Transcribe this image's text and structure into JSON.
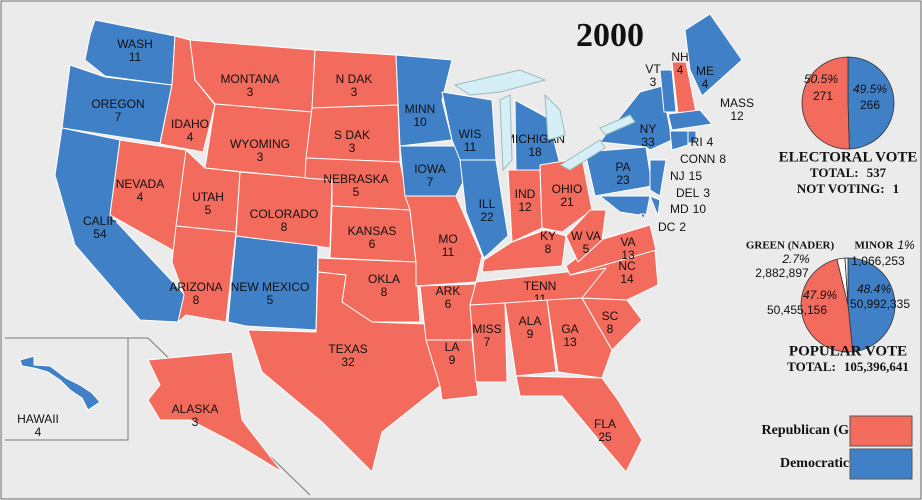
{
  "title": "2000",
  "legend": [
    {
      "label": "Republican (G. W. Bush)",
      "color": "#f26b5d"
    },
    {
      "label": "Democratic (Gore)",
      "color": "#3f80c6"
    }
  ],
  "states": [
    {
      "label": "WASH",
      "votes": 11,
      "color": "#3f80c6"
    },
    {
      "label": "OREGON",
      "votes": 7,
      "color": "#3f80c6"
    },
    {
      "label": "CALIF",
      "votes": 54,
      "color": "#3f80c6"
    },
    {
      "label": "NEVADA",
      "votes": 4,
      "color": "#f26b5d"
    },
    {
      "label": "IDAHO",
      "votes": 4,
      "color": "#f26b5d"
    },
    {
      "label": "MONTANA",
      "votes": 3,
      "color": "#f26b5d"
    },
    {
      "label": "WYOMING",
      "votes": 3,
      "color": "#f26b5d"
    },
    {
      "label": "UTAH",
      "votes": 5,
      "color": "#f26b5d"
    },
    {
      "label": "ARIZONA",
      "votes": 8,
      "color": "#f26b5d"
    },
    {
      "label": "COLORADO",
      "votes": 8,
      "color": "#f26b5d"
    },
    {
      "label": "NEW MEXICO",
      "votes": 5,
      "color": "#3f80c6"
    },
    {
      "label": "N DAK",
      "votes": 3,
      "color": "#f26b5d"
    },
    {
      "label": "S DAK",
      "votes": 3,
      "color": "#f26b5d"
    },
    {
      "label": "NEBRASKA",
      "votes": 5,
      "color": "#f26b5d"
    },
    {
      "label": "KANSAS",
      "votes": 6,
      "color": "#f26b5d"
    },
    {
      "label": "OKLA",
      "votes": 8,
      "color": "#f26b5d"
    },
    {
      "label": "TEXAS",
      "votes": 32,
      "color": "#f26b5d"
    },
    {
      "label": "MINN",
      "votes": 10,
      "color": "#3f80c6"
    },
    {
      "label": "IOWA",
      "votes": 7,
      "color": "#3f80c6"
    },
    {
      "label": "WIS",
      "votes": 11,
      "color": "#3f80c6"
    },
    {
      "label": "ILL",
      "votes": 22,
      "color": "#3f80c6"
    },
    {
      "label": "MICHIGAN",
      "votes": 18,
      "color": "#3f80c6"
    },
    {
      "label": "MO",
      "votes": 11,
      "color": "#f26b5d"
    },
    {
      "label": "ARK",
      "votes": 6,
      "color": "#f26b5d"
    },
    {
      "label": "LA",
      "votes": 9,
      "color": "#f26b5d"
    },
    {
      "label": "IND",
      "votes": 12,
      "color": "#f26b5d"
    },
    {
      "label": "OHIO",
      "votes": 21,
      "color": "#f26b5d"
    },
    {
      "label": "KY",
      "votes": 8,
      "color": "#f26b5d"
    },
    {
      "label": "TENN",
      "votes": 11,
      "color": "#f26b5d"
    },
    {
      "label": "MISS",
      "votes": 7,
      "color": "#f26b5d"
    },
    {
      "label": "ALA",
      "votes": 9,
      "color": "#f26b5d"
    },
    {
      "label": "GA",
      "votes": 13,
      "color": "#f26b5d"
    },
    {
      "label": "FLA",
      "votes": 25,
      "color": "#f26b5d"
    },
    {
      "label": "SC",
      "votes": 8,
      "color": "#f26b5d"
    },
    {
      "label": "NC",
      "votes": 14,
      "color": "#f26b5d"
    },
    {
      "label": "VA",
      "votes": 13,
      "color": "#f26b5d"
    },
    {
      "label": "W VA",
      "votes": 5,
      "color": "#f26b5d"
    },
    {
      "label": "PA",
      "votes": 23,
      "color": "#3f80c6"
    },
    {
      "label": "NY",
      "votes": 33,
      "color": "#3f80c6"
    },
    {
      "label": "VT",
      "votes": 3,
      "color": "#3f80c6"
    },
    {
      "label": "NH",
      "votes": 4,
      "color": "#f26b5d"
    },
    {
      "label": "ME",
      "votes": 4,
      "color": "#3f80c6"
    },
    {
      "label": "MASS",
      "votes": 12,
      "color": "#3f80c6"
    },
    {
      "label": "RI",
      "votes": 4,
      "color": "#3f80c6"
    },
    {
      "label": "CONN",
      "votes": 8,
      "color": "#3f80c6"
    },
    {
      "label": "NJ",
      "votes": 15,
      "color": "#3f80c6"
    },
    {
      "label": "DEL",
      "votes": 3,
      "color": "#3f80c6"
    },
    {
      "label": "MD",
      "votes": 10,
      "color": "#3f80c6"
    },
    {
      "label": "DC",
      "votes": 2,
      "color": "#3f80c6"
    },
    {
      "label": "HAWAII",
      "votes": 4,
      "color": "#3f80c6"
    },
    {
      "label": "ALASKA",
      "votes": 3,
      "color": "#f26b5d"
    }
  ],
  "electoral_vote": {
    "title": "ELECTORAL VOTE",
    "total_label": "TOTAL:",
    "total": 537,
    "not_voting_label": "NOT VOTING:",
    "not_voting": 1,
    "slices": [
      {
        "votes": 271,
        "percent_label": "50.5%",
        "color": "#f26b5d"
      },
      {
        "votes": 266,
        "percent_label": "49.5%",
        "color": "#3f80c6"
      }
    ]
  },
  "popular_vote": {
    "title": "POPULAR VOTE",
    "total_label": "TOTAL:",
    "total": "105,396,641",
    "slices": [
      {
        "votes": 50455156,
        "votes_label": "50,455,156",
        "percent_label": "47.9%",
        "color": "#f26b5d"
      },
      {
        "votes": 50992335,
        "votes_label": "50,992,335",
        "percent_label": "48.4%",
        "color": "#3f80c6"
      },
      {
        "name": "GREEN (NADER)",
        "votes": 2882897,
        "votes_label": "2,882,897",
        "percent_label": "2.7%",
        "color": "#ffffff"
      },
      {
        "name": "MINOR",
        "votes": 1066253,
        "votes_label": "1,066,253",
        "percent_label": "1%",
        "color": "#f4f4f4"
      }
    ]
  }
}
